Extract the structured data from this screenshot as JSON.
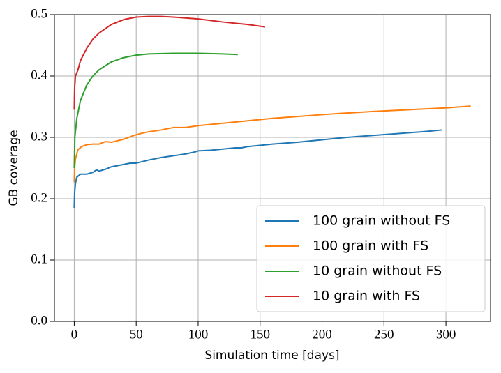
{
  "chart_data": {
    "type": "line",
    "xlabel": "Simulation time [days]",
    "ylabel": "GB coverage",
    "xlim": [
      -16,
      336
    ],
    "ylim": [
      0,
      0.5
    ],
    "xticks": [
      0,
      50,
      100,
      150,
      200,
      250,
      300
    ],
    "yticks": [
      {
        "value": 0,
        "label": "0.0"
      },
      0.1,
      0.2,
      0.3,
      0.4,
      0.5
    ],
    "grid": true,
    "legend": "lower right",
    "series": [
      {
        "name": "100 grain without FS",
        "color": "#1f77b4",
        "x": [
          0,
          0.3,
          1,
          2,
          5,
          10,
          15,
          18,
          20,
          25,
          30,
          35,
          40,
          45,
          50,
          60,
          70,
          80,
          90,
          97,
          100,
          110,
          120,
          130,
          135,
          140,
          160,
          180,
          200,
          220,
          240,
          260,
          280,
          297
        ],
        "values": [
          0.185,
          0.21,
          0.225,
          0.235,
          0.24,
          0.24,
          0.243,
          0.247,
          0.245,
          0.248,
          0.252,
          0.254,
          0.256,
          0.258,
          0.258,
          0.263,
          0.267,
          0.27,
          0.273,
          0.276,
          0.278,
          0.279,
          0.281,
          0.283,
          0.283,
          0.285,
          0.289,
          0.292,
          0.296,
          0.3,
          0.303,
          0.306,
          0.309,
          0.312
        ]
      },
      {
        "name": "100 grain with FS",
        "color": "#ff7f0e",
        "x": [
          0,
          0.3,
          1,
          3,
          6,
          10,
          15,
          20,
          25,
          30,
          40,
          48,
          55,
          60,
          70,
          80,
          90,
          100,
          120,
          140,
          160,
          180,
          200,
          215,
          240,
          260,
          280,
          300,
          320
        ],
        "values": [
          0.227,
          0.25,
          0.265,
          0.28,
          0.285,
          0.288,
          0.289,
          0.289,
          0.293,
          0.292,
          0.297,
          0.303,
          0.307,
          0.309,
          0.312,
          0.316,
          0.316,
          0.319,
          0.323,
          0.327,
          0.331,
          0.334,
          0.337,
          0.339,
          0.342,
          0.344,
          0.346,
          0.348,
          0.351
        ]
      },
      {
        "name": "10 grain without FS",
        "color": "#2ca02c",
        "x": [
          0,
          0.5,
          2,
          5,
          10,
          15,
          20,
          30,
          40,
          50,
          60,
          80,
          100,
          120,
          132
        ],
        "values": [
          0.25,
          0.3,
          0.33,
          0.36,
          0.385,
          0.4,
          0.41,
          0.423,
          0.43,
          0.434,
          0.436,
          0.437,
          0.437,
          0.436,
          0.435
        ]
      },
      {
        "name": "10 grain with FS",
        "color": "#d62728",
        "x": [
          0,
          0.3,
          1,
          3,
          5,
          10,
          15,
          20,
          30,
          40,
          50,
          60,
          70,
          80,
          100,
          120,
          140,
          154
        ],
        "values": [
          0.345,
          0.38,
          0.4,
          0.41,
          0.425,
          0.445,
          0.46,
          0.47,
          0.484,
          0.492,
          0.496,
          0.497,
          0.497,
          0.496,
          0.493,
          0.488,
          0.484,
          0.48
        ]
      }
    ]
  }
}
